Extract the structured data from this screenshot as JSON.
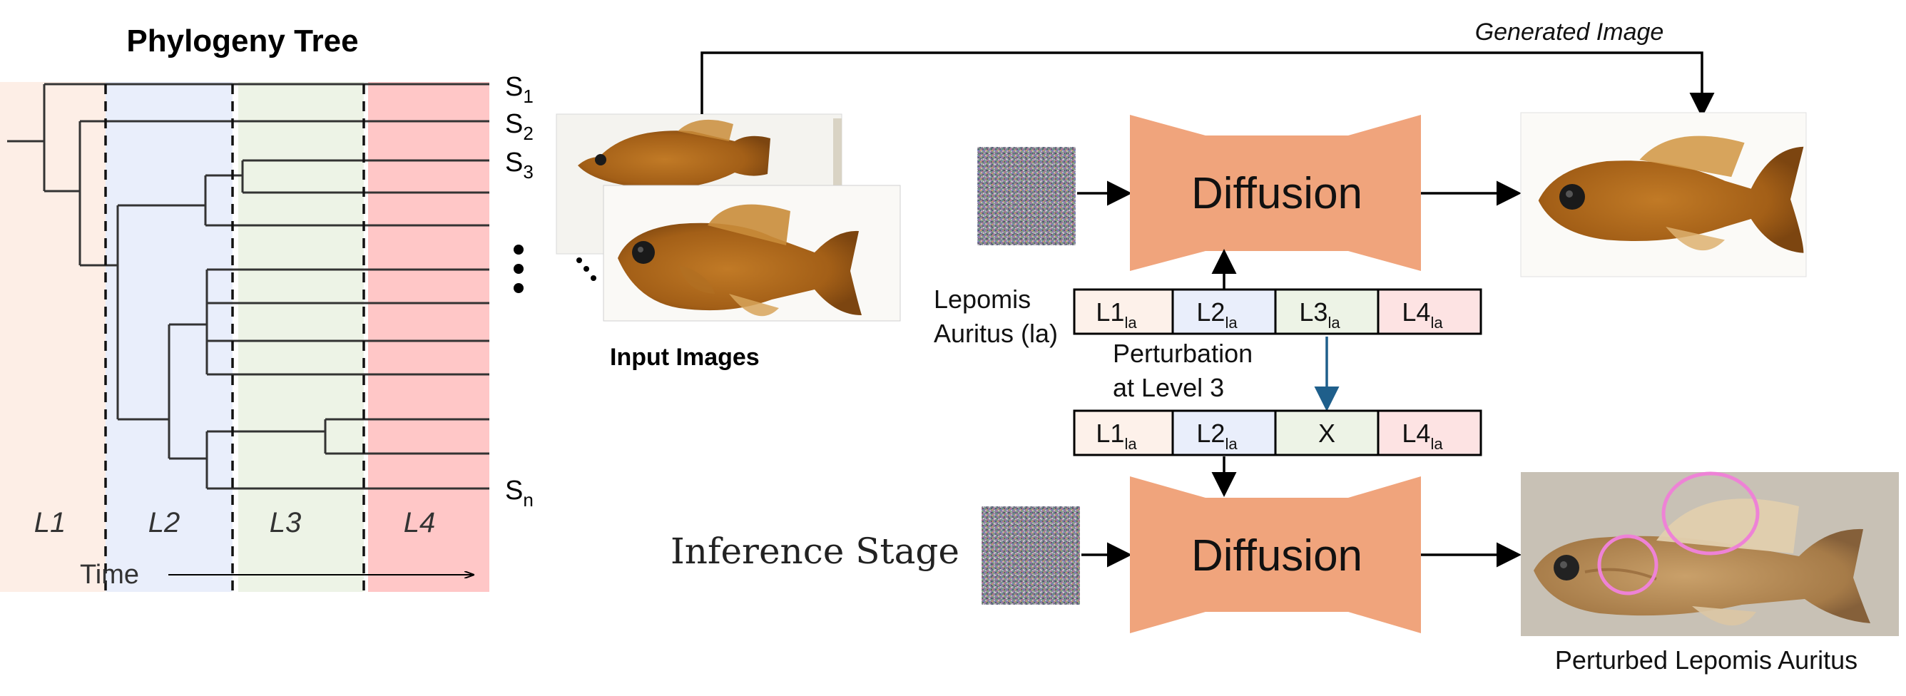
{
  "tree": {
    "title": "Phylogeny Tree",
    "levels": [
      "L1",
      "L2",
      "L3",
      "L4"
    ],
    "level_colors": [
      "#fdeee6",
      "#e9eefb",
      "#edf3e6",
      "#ffc7c7"
    ],
    "species": [
      {
        "letter": "S",
        "sub": "1"
      },
      {
        "letter": "S",
        "sub": "2"
      },
      {
        "letter": "S",
        "sub": "3"
      },
      {
        "letter": "S",
        "sub": "n"
      }
    ],
    "time_label": "Time"
  },
  "inputs": {
    "label": "Input Images"
  },
  "generated": {
    "label": "Generated Image"
  },
  "diffusion": {
    "top_label": "Diffusion",
    "bottom_label": "Diffusion",
    "color": "#f0a47c"
  },
  "embedding": {
    "species_line1": "Lepomis",
    "species_line2": "Auritus (la)",
    "top_row": [
      {
        "text": "L1",
        "sub": "la"
      },
      {
        "text": "L2",
        "sub": "la"
      },
      {
        "text": "L3",
        "sub": "la"
      },
      {
        "text": "L4",
        "sub": "la"
      }
    ],
    "bottom_row": [
      {
        "text": "L1",
        "sub": "la"
      },
      {
        "text": "L2",
        "sub": "la"
      },
      {
        "text": "X",
        "sub": ""
      },
      {
        "text": "L4",
        "sub": "la"
      }
    ],
    "perturbation_line1": "Perturbation",
    "perturbation_line2": "at Level 3",
    "arrow_color": "#1f5f8b"
  },
  "inference": {
    "label": "Inference Stage"
  },
  "output": {
    "label": "Perturbed Lepomis Auritus",
    "highlight_color": "#ee82d6"
  }
}
